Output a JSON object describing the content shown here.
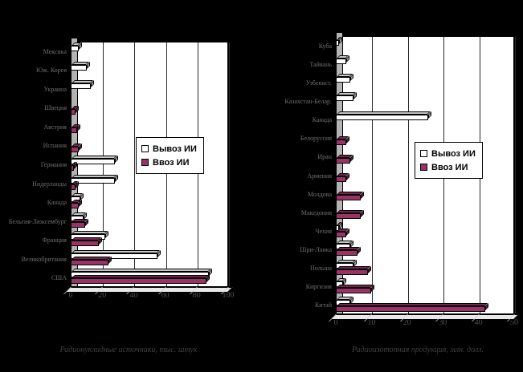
{
  "page": {
    "background": "#000000"
  },
  "colors": {
    "export_bar": "#ffffff",
    "export_top": "#c6c6c6",
    "import_bar": "#993366",
    "import_top": "#74264e",
    "plot_bg": "#ffffff",
    "back_wall": "#b3b3b3",
    "label_text": "#6f6f6f"
  },
  "legend": {
    "export_label": "Вывоз ИИ",
    "import_label": "Ввоз ИИ"
  },
  "chart_data": [
    {
      "type": "bar",
      "orientation": "horizontal",
      "style": "3d",
      "caption": "Радионуклидные источники, тыс. штук",
      "xlim": [
        0,
        100
      ],
      "xticks": [
        0,
        20,
        40,
        60,
        80,
        100
      ],
      "grid": "vertical",
      "legend_position": "center-right",
      "categories": [
        "Мексика",
        "Юж. Корея",
        "Украина",
        "Швеция",
        "Австрия",
        "Испания",
        "Германия",
        "Нидерланды",
        "Канада",
        "Бельгия-Люксембург",
        "Франция",
        "Великобритания",
        "США"
      ],
      "series": [
        {
          "name": "Вывоз ИИ",
          "color": "#ffffff",
          "values": [
            5,
            10,
            13,
            0,
            0,
            0,
            28,
            28,
            6,
            8,
            22,
            55,
            88
          ]
        },
        {
          "name": "Ввоз ИИ",
          "color": "#993366",
          "values": [
            0,
            0,
            0,
            3,
            4,
            5,
            2,
            3,
            5,
            9,
            18,
            24,
            86
          ]
        }
      ]
    },
    {
      "type": "bar",
      "orientation": "horizontal",
      "style": "3d",
      "caption": "Радиоизотопная продукция, млн. долл.",
      "xlim": [
        0,
        50
      ],
      "xticks": [
        0,
        10,
        20,
        30,
        40,
        50
      ],
      "grid": "vertical",
      "legend_position": "center-right",
      "categories": [
        "Куба",
        "Тайвань",
        "Узбекист.",
        "Казахстан-Белар.",
        "Канада",
        "Белоруссия",
        "Иран",
        "Армения",
        "Молдова",
        "Македония",
        "Чехия",
        "Шри-Ланка",
        "Польша",
        "Киргизия",
        "Китай"
      ],
      "series": [
        {
          "name": "Вывоз ИИ",
          "color": "#ffffff",
          "values": [
            1,
            3,
            4,
            5,
            26,
            0,
            0,
            0,
            0,
            0,
            1,
            4,
            5,
            2,
            4
          ]
        },
        {
          "name": "Ввоз ИИ",
          "color": "#993366",
          "values": [
            0,
            0,
            0,
            0,
            0,
            3,
            4,
            3,
            7,
            7,
            3,
            6,
            9,
            10,
            42
          ]
        }
      ]
    }
  ]
}
